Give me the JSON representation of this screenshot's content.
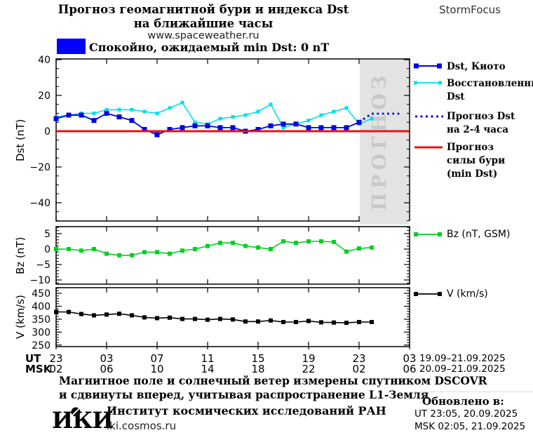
{
  "header": {
    "title_line1": "Прогноз геомагнитной бури и индекса Dst",
    "title_line2": "на ближайшие часы",
    "site": "www.spaceweather.ru",
    "brand": "StormFocus"
  },
  "status": {
    "text": "Спокойно, ожидаемый min Dst: 0 nT",
    "swatch_color": "#0000ff"
  },
  "legend": {
    "dst_kyoto": "Dst, Киото",
    "restored_line1": "Восстановленный",
    "restored_line2": "Dst",
    "forecast_line1": "Прогноз Dst",
    "forecast_line2": "на 2-4 часа",
    "storm_line1": "Прогноз",
    "storm_line2": "силы бури",
    "storm_line3": "(min Dst)",
    "bz": "Bz (nT, GSM)",
    "v": "V (km/s)"
  },
  "xaxis": {
    "ut_label": "UT",
    "msk_label": "MSK",
    "tick_hours": [
      0,
      4,
      8,
      12,
      16,
      20,
      24,
      28
    ],
    "ut_ticks": [
      "23",
      "03",
      "07",
      "11",
      "15",
      "19",
      "23",
      "03"
    ],
    "msk_ticks": [
      "02",
      "06",
      "10",
      "14",
      "18",
      "22",
      "02",
      "06"
    ],
    "date_ut": "19.09–21.09.2025",
    "date_msk": "20.09–21.09.2025"
  },
  "forecast_band": {
    "label": "ПРОГНОЗ",
    "start_hour": 24.06,
    "end_hour": 28,
    "fill": "#e3e3e3",
    "label_color": "#c8c8c8"
  },
  "footnote": {
    "line1": "Магнитное поле и солнечный ветер измерены спутником DSCOVR",
    "line2": "и сдвинуты вперед, учитывая распространение L1-Земля"
  },
  "footer": {
    "logo": "ИКИ",
    "org": "Институт космических исследований РАН",
    "url": "iki.cosmos.ru",
    "updated_label": "Обновлено в:",
    "updated_ut": "UT   23:05, 20.09.2025",
    "updated_msk": "MSK 02:05, 21.09.2025"
  },
  "chart_data": [
    {
      "id": "dst",
      "type": "line",
      "ylabel": "Dst (nT)",
      "ylim": [
        -50.2,
        40.4
      ],
      "ymajor_step": 20,
      "yminor_step": 5,
      "yticks": [
        {
          "v": 40,
          "label": "40"
        },
        {
          "v": 20,
          "label": "20"
        },
        {
          "v": 0,
          "label": "0"
        },
        {
          "v": -20,
          "label": "−20"
        },
        {
          "v": -40,
          "label": "−40"
        }
      ],
      "series": [
        {
          "key": "dst-restored",
          "name": "Восстановленный Dst",
          "color": "#00e0e8",
          "line_width": 1.6,
          "marker": "square",
          "marker_size": 5,
          "x_start": 0,
          "x_step": 1,
          "values": [
            8,
            9,
            10,
            10,
            12,
            12,
            12,
            11,
            10,
            13,
            16,
            5,
            4,
            7,
            8,
            9,
            11,
            15,
            2,
            4,
            6,
            9,
            11,
            13,
            4,
            7
          ]
        },
        {
          "key": "dst-kyoto",
          "name": "Dst, Киото",
          "color": "#0000e6",
          "line_width": 1.8,
          "marker": "square",
          "marker_size": 7,
          "x_start": 0,
          "x_step": 1,
          "values": [
            7,
            9,
            9,
            6,
            10,
            8,
            6,
            1,
            -2,
            1,
            2,
            3,
            3,
            2,
            2,
            0,
            1,
            3,
            4,
            4,
            2,
            2,
            2,
            2,
            5
          ]
        },
        {
          "key": "dst-forecast",
          "name": "Прогноз Dst на 2-4 часа",
          "color": "#0000e6",
          "style": "dotted",
          "line_width": 2.8,
          "x": [
            24,
            24.5,
            25,
            27.3
          ],
          "values": [
            5,
            7.5,
            9.8,
            9.8
          ]
        },
        {
          "key": "storm-level",
          "name": "Прогноз силы бури (min Dst)",
          "color": "#ee1111",
          "style": "hline",
          "line_width": 3,
          "value": 0
        }
      ]
    },
    {
      "id": "bz",
      "type": "line",
      "ylabel": "Bz (nT)",
      "ylim": [
        -11.36,
        7.27
      ],
      "ymajor_step": 5,
      "yminor_step": 1,
      "yticks": [
        {
          "v": 5,
          "label": "5"
        },
        {
          "v": 0,
          "label": "0"
        },
        {
          "v": -5,
          "label": "−5"
        },
        {
          "v": -10,
          "label": "−10"
        }
      ],
      "series": [
        {
          "key": "bz",
          "name": "Bz (nT, GSM)",
          "color": "#00d020",
          "line_width": 1.6,
          "marker": "square",
          "marker_size": 6,
          "x_start": 0,
          "x_step": 1,
          "values": [
            0,
            0,
            -0.5,
            0,
            -1.5,
            -2,
            -2,
            -1,
            -1,
            -1.5,
            -0.5,
            0,
            1,
            2,
            2,
            1,
            0.5,
            0,
            2.5,
            2,
            2.5,
            2.5,
            2.3,
            -0.8,
            0.2,
            0.5
          ]
        }
      ]
    },
    {
      "id": "v",
      "type": "line",
      "ylabel": "V (km/s)",
      "ylim": [
        244,
        472
      ],
      "ymajor_step": 50,
      "yminor_step": 10,
      "yticks": [
        {
          "v": 450,
          "label": "450"
        },
        {
          "v": 400,
          "label": "400"
        },
        {
          "v": 350,
          "label": "350"
        },
        {
          "v": 300,
          "label": "300"
        },
        {
          "v": 250,
          "label": "250"
        }
      ],
      "series": [
        {
          "key": "v",
          "name": "V (km/s)",
          "color": "#000000",
          "line_width": 1.6,
          "marker": "square",
          "marker_size": 6,
          "x_start": 0,
          "x_step": 1,
          "values": [
            378,
            378,
            370,
            365,
            368,
            371,
            365,
            357,
            354,
            356,
            351,
            351,
            348,
            351,
            349,
            341,
            341,
            345,
            339,
            339,
            343,
            338,
            337,
            336,
            339,
            339
          ]
        }
      ]
    }
  ]
}
